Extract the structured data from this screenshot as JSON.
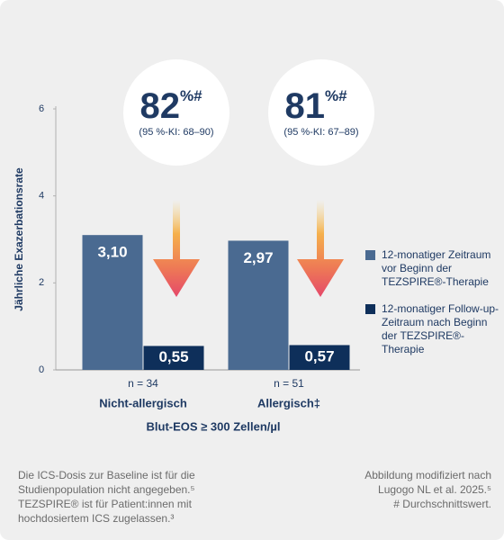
{
  "chart_data": {
    "type": "bar",
    "y_label": "Jährliche Exazerbationsrate",
    "x_label": "Blut-EOS ≥ 300 Zellen/µl",
    "categories": [
      "Nicht-allergisch",
      "Allergisch‡"
    ],
    "group_labels": [
      "n = 34",
      "n = 51"
    ],
    "series": [
      {
        "name": "12-monatiger Zeitraum vor Beginn der TEZSPIRE®-Therapie",
        "color": "#4a6a91",
        "values": [
          3.1,
          2.97
        ],
        "value_labels": [
          "3,10",
          "2,97"
        ]
      },
      {
        "name": "12-monatiger Follow-up-Zeitraum nach Beginn der TEZSPIRE®-Therapie",
        "color": "#0e2f5a",
        "values": [
          0.55,
          0.57
        ],
        "value_labels": [
          "0,55",
          "0,57"
        ]
      }
    ],
    "annotations": [
      {
        "value": "82",
        "suffix": "%#",
        "ci": "(95 %-KI: 68–90)"
      },
      {
        "value": "81",
        "suffix": "%#",
        "ci": "(95 %-KI: 67–89)"
      }
    ],
    "ylim": [
      0,
      6
    ],
    "yticks": [
      0,
      2,
      4,
      6
    ],
    "grid": false
  },
  "notes": {
    "left": [
      "Die ICS-Dosis zur Baseline ist für die",
      "Studienpopulation nicht angegeben.⁵",
      "TEZSPIRE® ist für Patient:innen mit",
      "hochdosiertem ICS zugelassen.³"
    ],
    "right": [
      "Abbildung modifiziert nach",
      "Lugogo NL et al. 2025.⁵",
      "# Durchschnittswert."
    ]
  }
}
